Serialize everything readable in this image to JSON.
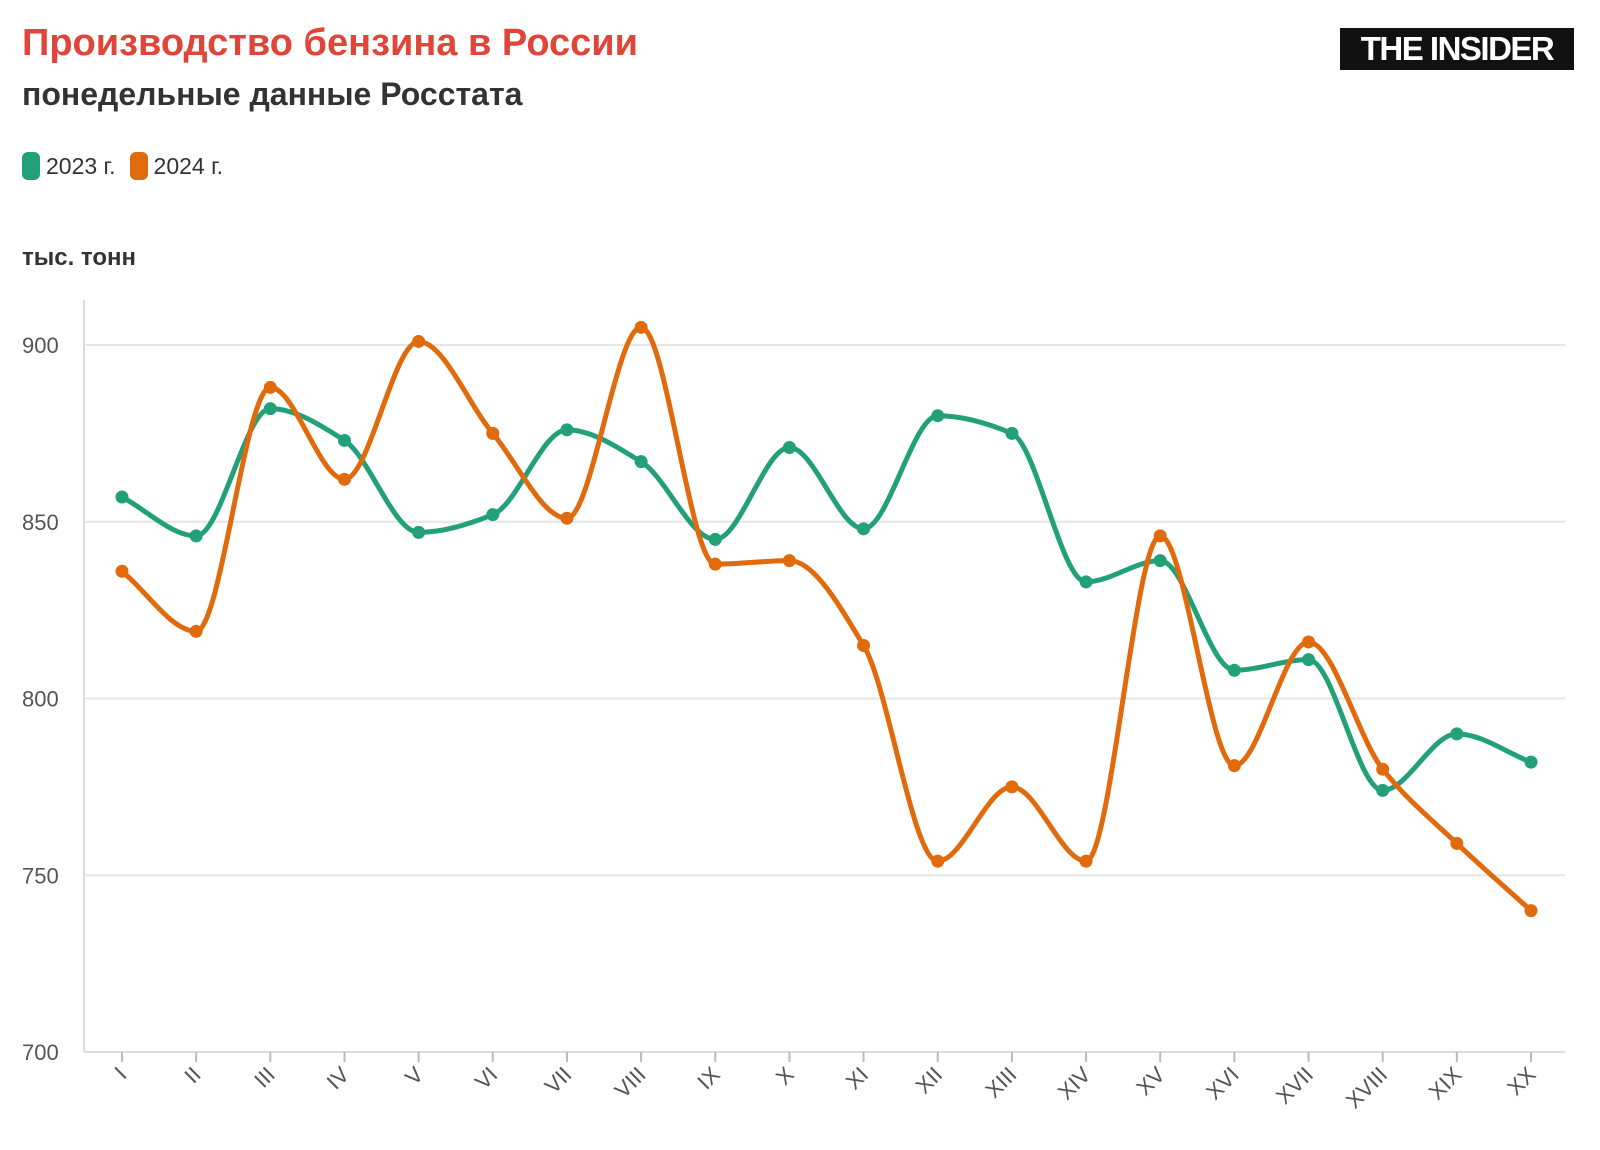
{
  "header": {
    "title": "Производство бензина в России",
    "subtitle": "понедельные данные Росстата",
    "logo_text": "THE INSIDER"
  },
  "colors": {
    "title": "#e0453a",
    "series_2023": "#21a07a",
    "series_2024": "#e06a0c",
    "grid": "#e6e6e6",
    "logo_bg": "#111111"
  },
  "chart_data": {
    "type": "line",
    "title": "Производство бензина в России",
    "subtitle": "понедельные данные Росстата",
    "ylabel": "тыс. тонн",
    "xlabel": "",
    "ylim": [
      700,
      900
    ],
    "yticks": [
      700,
      750,
      800,
      850,
      900
    ],
    "grid": true,
    "legend_position": "top-left",
    "categories": [
      "I",
      "II",
      "III",
      "IV",
      "V",
      "VI",
      "VII",
      "VIII",
      "IX",
      "X",
      "XI",
      "XII",
      "XIII",
      "XIV",
      "XV",
      "XVI",
      "XVII",
      "XVIII",
      "XIX",
      "XX"
    ],
    "series": [
      {
        "name": "2023 г.",
        "color": "#21a07a",
        "values": [
          857,
          846,
          882,
          873,
          847,
          852,
          876,
          867,
          845,
          871,
          848,
          880,
          875,
          833,
          839,
          808,
          811,
          774,
          790,
          782
        ]
      },
      {
        "name": "2024 г.",
        "color": "#e06a0c",
        "values": [
          836,
          819,
          888,
          862,
          901,
          875,
          851,
          905,
          838,
          839,
          815,
          754,
          775,
          754,
          846,
          781,
          816,
          780,
          759,
          740
        ]
      }
    ]
  }
}
